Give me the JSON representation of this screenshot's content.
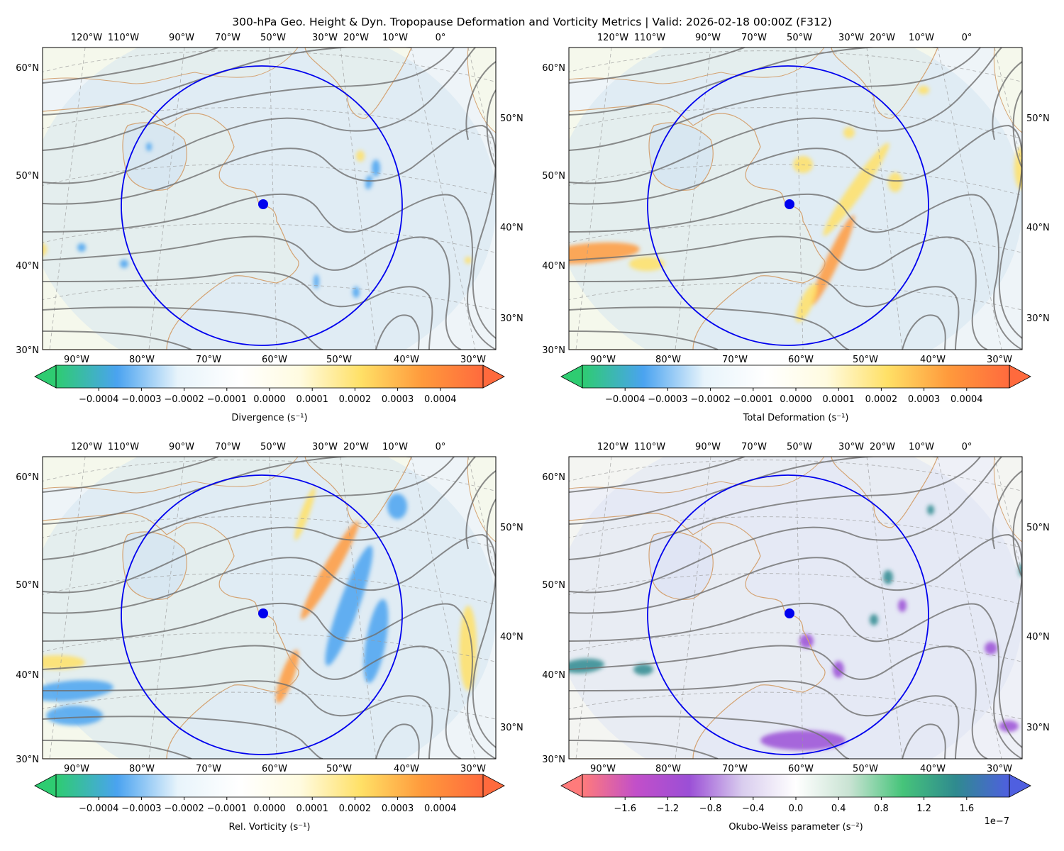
{
  "figure": {
    "title": "300-hPa Geo. Height & Dyn. Tropopause Deformation and Vorticity Metrics |  Valid: 2026-02-18 00:00Z (F312)"
  },
  "chart_data": [
    {
      "type": "heatmap",
      "name": "divergence-panel",
      "field": "Divergence",
      "colorbar_label": "Divergence (s⁻¹)",
      "colorbar_ticks": [
        "−0.0004",
        "−0.0003",
        "−0.0002",
        "−0.0001",
        "0.0000",
        "0.0001",
        "0.0002",
        "0.0003",
        "0.0004"
      ],
      "colorbar_values": [
        -0.0004,
        -0.0003,
        -0.0002,
        -0.0001,
        0.0,
        0.0001,
        0.0002,
        0.0003,
        0.0004
      ],
      "colorbar_range": [
        -0.0005,
        0.0005
      ],
      "colormap": [
        "#2ecc71",
        "#4aa3f0",
        "#e8f4fb",
        "#ffffff",
        "#fffbe0",
        "#ffe066",
        "#ff9a3c",
        "#ff6a3d"
      ],
      "colorbar_extend": "both",
      "bottom_lon_ticks": [
        "90°W",
        "80°W",
        "70°W",
        "60°W",
        "50°W",
        "40°W",
        "30°W"
      ],
      "top_lon_ticks": [
        "120°W",
        "110°W",
        "90°W",
        "70°W",
        "50°W",
        "30°W",
        "20°W",
        "10°W",
        "0°"
      ],
      "left_lat_ticks": [
        "60°N",
        "50°N",
        "40°N",
        "30°N"
      ],
      "right_lat_ticks": [
        "50°N",
        "40°N",
        "30°N"
      ],
      "center_point": {
        "lon": -61,
        "lat": 47
      },
      "ring": true
    },
    {
      "type": "heatmap",
      "name": "total-deformation-panel",
      "field": "Total Deformation",
      "colorbar_label": "Total Deformation (s⁻¹)",
      "colorbar_ticks": [
        "−0.0004",
        "−0.0003",
        "−0.0002",
        "−0.0001",
        "0.0000",
        "0.0001",
        "0.0002",
        "0.0003",
        "0.0004"
      ],
      "colorbar_values": [
        -0.0004,
        -0.0003,
        -0.0002,
        -0.0001,
        0.0,
        0.0001,
        0.0002,
        0.0003,
        0.0004
      ],
      "colorbar_range": [
        -0.0005,
        0.0005
      ],
      "colormap": [
        "#2ecc71",
        "#4aa3f0",
        "#e8f4fb",
        "#ffffff",
        "#fffbe0",
        "#ffe066",
        "#ff9a3c",
        "#ff6a3d"
      ],
      "colorbar_extend": "both",
      "bottom_lon_ticks": [
        "90°W",
        "80°W",
        "70°W",
        "60°W",
        "50°W",
        "40°W",
        "30°W"
      ],
      "top_lon_ticks": [
        "120°W",
        "110°W",
        "90°W",
        "70°W",
        "50°W",
        "30°W",
        "20°W",
        "10°W",
        "0°"
      ],
      "left_lat_ticks": [
        "60°N",
        "50°N",
        "40°N",
        "30°N"
      ],
      "right_lat_ticks": [
        "50°N",
        "40°N",
        "30°N"
      ],
      "center_point": {
        "lon": -61,
        "lat": 47
      },
      "ring": true
    },
    {
      "type": "heatmap",
      "name": "relative-vorticity-panel",
      "field": "Rel. Vorticity",
      "colorbar_label": "Rel. Vorticity (s⁻¹)",
      "colorbar_ticks": [
        "−0.0004",
        "−0.0003",
        "−0.0002",
        "−0.0001",
        "0.0000",
        "0.0001",
        "0.0002",
        "0.0003",
        "0.0004"
      ],
      "colorbar_values": [
        -0.0004,
        -0.0003,
        -0.0002,
        -0.0001,
        0.0,
        0.0001,
        0.0002,
        0.0003,
        0.0004
      ],
      "colorbar_range": [
        -0.0005,
        0.0005
      ],
      "colormap": [
        "#2ecc71",
        "#4aa3f0",
        "#e8f4fb",
        "#ffffff",
        "#fffbe0",
        "#ffe066",
        "#ff9a3c",
        "#ff6a3d"
      ],
      "colorbar_extend": "both",
      "bottom_lon_ticks": [
        "90°W",
        "80°W",
        "70°W",
        "60°W",
        "50°W",
        "40°W",
        "30°W"
      ],
      "top_lon_ticks": [
        "120°W",
        "110°W",
        "90°W",
        "70°W",
        "50°W",
        "30°W",
        "20°W",
        "10°W",
        "0°"
      ],
      "left_lat_ticks": [
        "60°N",
        "50°N",
        "40°N",
        "30°N"
      ],
      "right_lat_ticks": [
        "50°N",
        "40°N",
        "30°N"
      ],
      "center_point": {
        "lon": -61,
        "lat": 47
      },
      "ring": true
    },
    {
      "type": "heatmap",
      "name": "okubo-weiss-panel",
      "field": "Okubo-Weiss parameter",
      "colorbar_label": "Okubo-Weiss parameter (s⁻²)",
      "colorbar_ticks": [
        "−1.6",
        "−1.2",
        "−0.8",
        "−0.4",
        "0.0",
        "0.4",
        "0.8",
        "1.2",
        "1.6"
      ],
      "colorbar_values": [
        -1.6,
        -1.2,
        -0.8,
        -0.4,
        0.0,
        0.4,
        0.8,
        1.2,
        1.6
      ],
      "colorbar_range": [
        -2.0,
        2.0
      ],
      "colorbar_scale": "1e−7",
      "colormap": [
        "#ff7b7b",
        "#c24fc9",
        "#9b4fd6",
        "#d9cdee",
        "#ffffff",
        "#c9e3d3",
        "#46c47a",
        "#2f8a8f",
        "#4f5fe0"
      ],
      "colorbar_extend": "both",
      "bottom_lon_ticks": [
        "90°W",
        "80°W",
        "70°W",
        "60°W",
        "50°W",
        "40°W",
        "30°W"
      ],
      "top_lon_ticks": [
        "120°W",
        "110°W",
        "90°W",
        "70°W",
        "50°W",
        "30°W",
        "20°W",
        "10°W",
        "0°"
      ],
      "left_lat_ticks": [
        "60°N",
        "50°N",
        "40°N",
        "30°N"
      ],
      "right_lat_ticks": [
        "50°N",
        "40°N",
        "30°N"
      ],
      "center_point": {
        "lon": -61,
        "lat": 47
      },
      "ring": true
    }
  ]
}
